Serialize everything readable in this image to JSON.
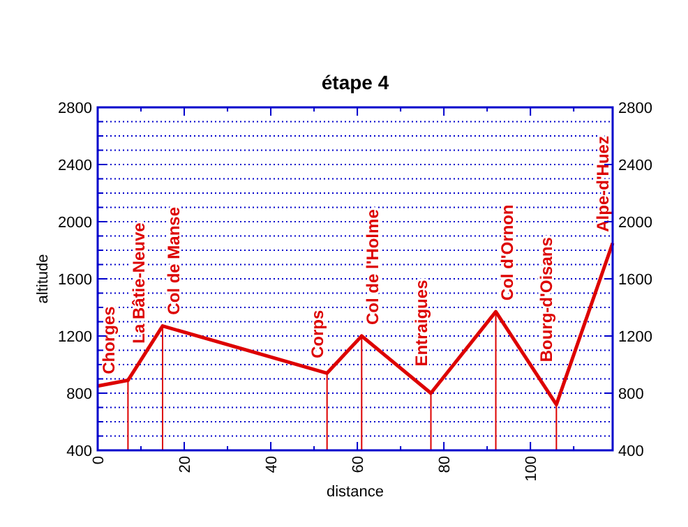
{
  "chart_data": {
    "type": "line",
    "title": "étape 4",
    "xlabel": "distance",
    "ylabel": "altitude",
    "x": [
      0,
      7,
      15,
      53,
      61,
      77,
      92,
      106,
      119
    ],
    "series": [
      {
        "color": "#dd0000",
        "values": [
          850,
          890,
          1270,
          940,
          1200,
          800,
          1370,
          720,
          1850
        ]
      }
    ],
    "xlim": [
      0,
      119
    ],
    "xticks": [
      0,
      {
        "value": 10,
        "label": null
      },
      20,
      {
        "value": 30,
        "label": null
      },
      40,
      {
        "value": 50,
        "label": null
      },
      60,
      {
        "value": 70,
        "label": null
      },
      80,
      {
        "value": 90,
        "label": null
      },
      100,
      {
        "value": 110,
        "label": null
      }
    ],
    "ylim": [
      400,
      2800
    ],
    "yticks": [
      400,
      {
        "value": 500,
        "label": null
      },
      {
        "value": 600,
        "label": null
      },
      {
        "value": 700,
        "label": null
      },
      800,
      {
        "value": 900,
        "label": null
      },
      {
        "value": 1000,
        "label": null
      },
      {
        "value": 1100,
        "label": null
      },
      1200,
      {
        "value": 1300,
        "label": null
      },
      {
        "value": 1400,
        "label": null
      },
      {
        "value": 1500,
        "label": null
      },
      1600,
      {
        "value": 1700,
        "label": null
      },
      {
        "value": 1800,
        "label": null
      },
      {
        "value": 1900,
        "label": null
      },
      2000,
      {
        "value": 2100,
        "label": null
      },
      {
        "value": 2200,
        "label": null
      },
      {
        "value": 2300,
        "label": null
      },
      2400,
      {
        "value": 2500,
        "label": null
      },
      {
        "value": 2600,
        "label": null
      },
      {
        "value": 2700,
        "label": null
      },
      2800
    ],
    "y2lim": [
      400,
      2800
    ],
    "y2ticks": [
      400,
      800,
      1200,
      1600,
      2000,
      2400,
      2800
    ],
    "grid": "y",
    "marker": "none",
    "line_style": "solid",
    "annotations": [
      {
        "text": "Chorges",
        "x": 0,
        "y": 850
      },
      {
        "text": "La Bâtie-Neuve",
        "x": 7,
        "y": 890
      },
      {
        "text": "Col de Manse",
        "x": 15,
        "y": 1270
      },
      {
        "text": "Corps",
        "x": 53,
        "y": 940
      },
      {
        "text": "Col de l'Holme",
        "x": 61,
        "y": 1200
      },
      {
        "text": "Entraigues",
        "x": 77,
        "y": 800
      },
      {
        "text": "Col d'Ornon",
        "x": 92,
        "y": 1370
      },
      {
        "text": "Bourg-d'Oisans",
        "x": 106,
        "y": 720
      },
      {
        "text": "Alpe-d'Huez",
        "x": 119,
        "y": 1850
      }
    ]
  }
}
